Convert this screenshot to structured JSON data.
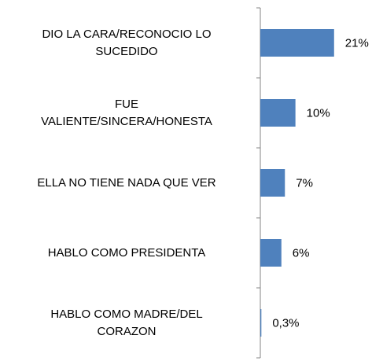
{
  "chart_data": {
    "type": "hbar",
    "categories": [
      "DIO LA CARA/RECONOCIO LO\nSUCEDIDO",
      "FUE\nVALIENTE/SINCERA/HONESTA",
      "ELLA NO TIENE NADA QUE VER",
      "HABLO COMO PRESIDENTA",
      "HABLO COMO MADRE/DEL\nCORAZON"
    ],
    "values": [
      21,
      10,
      7,
      6,
      0.3
    ],
    "value_labels": [
      "21%",
      "10%",
      "7%",
      "6%",
      "0,3%"
    ],
    "color": "#4f81bd",
    "xlim": [
      0,
      30
    ]
  }
}
